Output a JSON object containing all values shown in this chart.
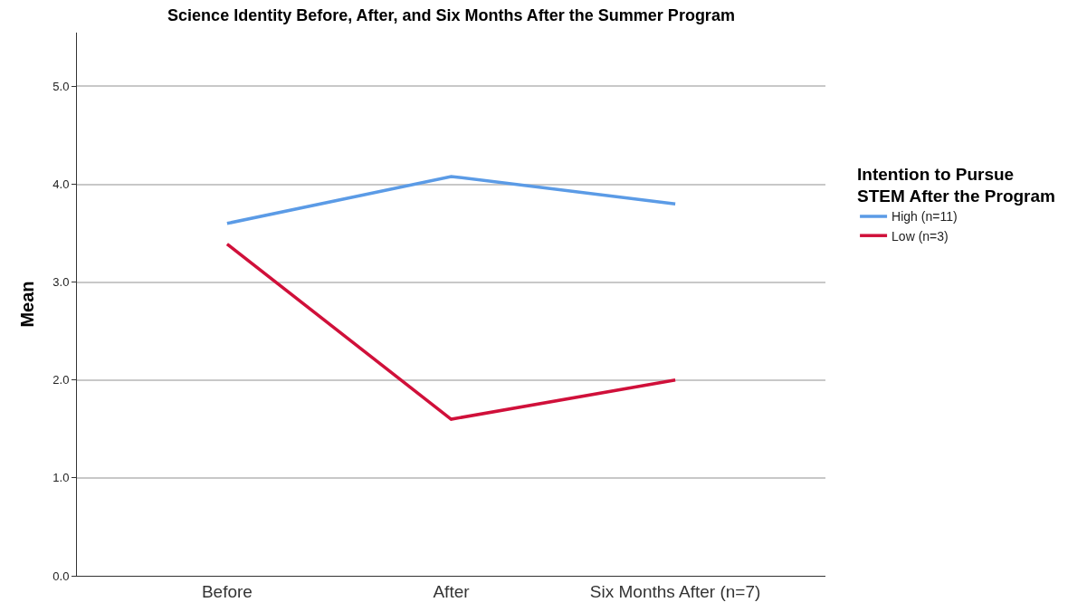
{
  "chart_data": {
    "type": "line",
    "title": "Science Identity Before, After, and Six Months After the Summer Program",
    "ylabel": "Mean",
    "legend_title": "Intention to Pursue STEM After the Program",
    "categories": [
      "Before",
      "After",
      "Six Months After (n=7)"
    ],
    "series": [
      {
        "name": "High (n=11)",
        "color": "#5b9be6",
        "values": [
          3.6,
          4.08,
          3.8
        ]
      },
      {
        "name": "Low (n=3)",
        "color": "#d0103a",
        "values": [
          3.39,
          1.6,
          2.0
        ]
      }
    ],
    "ylim": [
      0,
      5.55
    ],
    "yticks": [
      {
        "value": 0,
        "label": "0.0"
      },
      {
        "value": 1,
        "label": "1.0"
      },
      {
        "value": 2,
        "label": "2.0"
      },
      {
        "value": 3,
        "label": "3.0"
      },
      {
        "value": 4,
        "label": "4.0"
      },
      {
        "value": 5,
        "label": "5.0"
      }
    ],
    "grid": "y",
    "legend": "right",
    "marker": "none",
    "line_style": "solid"
  }
}
